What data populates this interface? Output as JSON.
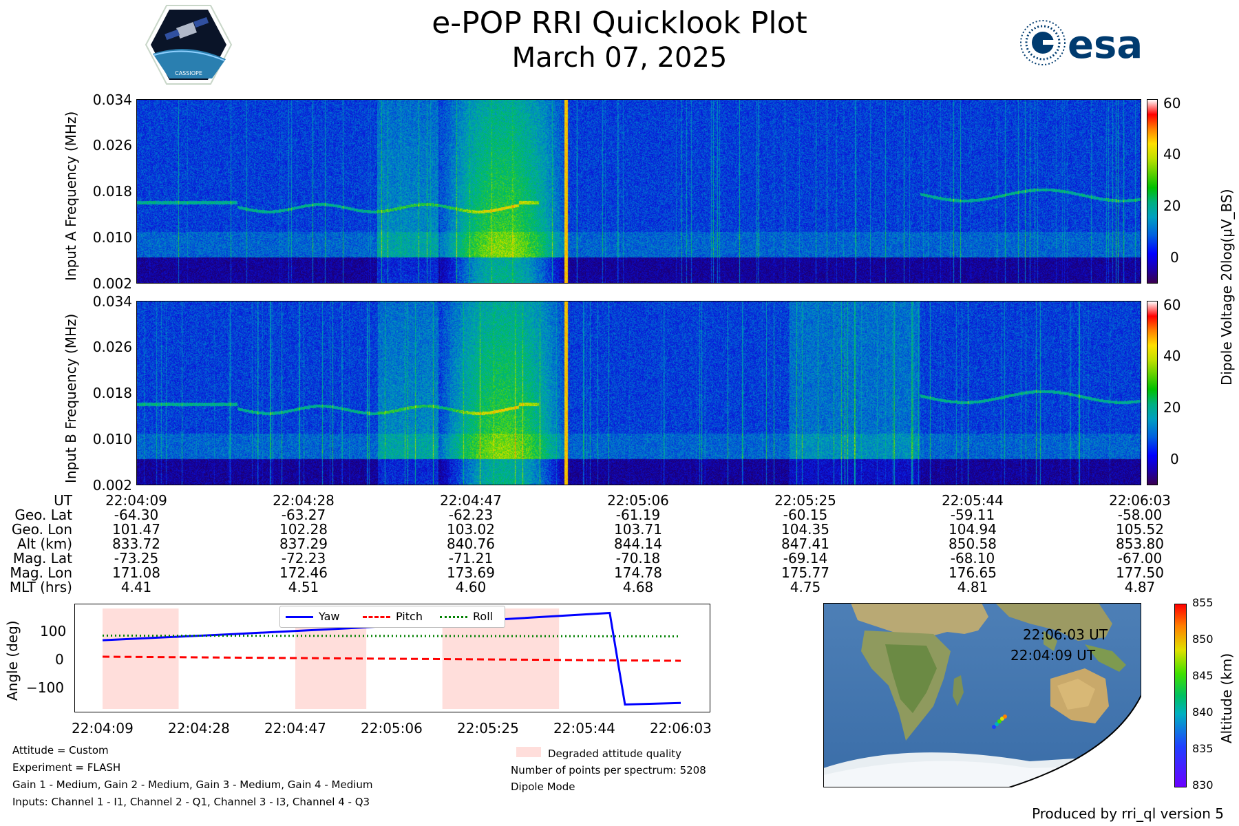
{
  "title": "e-POP RRI Quicklook Plot",
  "subtitle": "March 07, 2025",
  "logos": {
    "left": "cassiope-mission-patch",
    "left_text": "CASSIOPE",
    "right": "esa-logo",
    "right_text": "esa"
  },
  "chart_data": [
    {
      "type": "heatmap",
      "panel": "Input A",
      "ylabel": "Input A Frequency (MHz)",
      "ylim": [
        0.002,
        0.034
      ],
      "yticks": [
        "0.034",
        "0.026",
        "0.018",
        "0.010",
        "0.002"
      ],
      "colorbar_label": "Dipole Voltage 20log(μV_BS)",
      "colorbar_ticks": [
        "60",
        "40",
        "20",
        "0"
      ],
      "clim": [
        -10,
        62
      ]
    },
    {
      "type": "heatmap",
      "panel": "Input B",
      "ylabel": "Input B Frequency (MHz)",
      "ylim": [
        0.002,
        0.034
      ],
      "yticks": [
        "0.034",
        "0.026",
        "0.018",
        "0.010",
        "0.002"
      ],
      "colorbar_label": "Dipole Voltage 20log(μV_BS)",
      "colorbar_ticks": [
        "60",
        "40",
        "20",
        "0"
      ],
      "clim": [
        -10,
        62
      ]
    },
    {
      "type": "table",
      "row_labels": [
        "UT",
        "Geo. Lat",
        "Geo. Lon",
        "Alt (km)",
        "Mag. Lat",
        "Mag. Lon",
        "MLT (hrs)"
      ],
      "rows": [
        [
          "22:04:09",
          "22:04:28",
          "22:04:47",
          "22:05:06",
          "22:05:25",
          "22:05:44",
          "22:06:03"
        ],
        [
          "-64.30",
          "-63.27",
          "-62.23",
          "-61.19",
          "-60.15",
          "-59.11",
          "-58.00"
        ],
        [
          "101.47",
          "102.28",
          "103.02",
          "103.71",
          "104.35",
          "104.94",
          "105.52"
        ],
        [
          "833.72",
          "837.29",
          "840.76",
          "844.14",
          "847.41",
          "850.58",
          "853.80"
        ],
        [
          "-73.25",
          "-72.23",
          "-71.21",
          "-70.18",
          "-69.14",
          "-68.10",
          "-67.00"
        ],
        [
          "171.08",
          "172.46",
          "173.69",
          "174.78",
          "175.77",
          "176.65",
          "177.50"
        ],
        [
          "4.41",
          "4.51",
          "4.60",
          "4.68",
          "4.75",
          "4.81",
          "4.87"
        ]
      ]
    },
    {
      "type": "line",
      "ylabel": "Angle (deg)",
      "yticks": [
        "100",
        "0",
        "−100"
      ],
      "ylim": [
        -190,
        190
      ],
      "x_ticks": [
        "22:04:09",
        "22:04:28",
        "22:04:47",
        "22:05:06",
        "22:05:25",
        "22:05:44",
        "22:06:03"
      ],
      "x_seconds": [
        0,
        19,
        38,
        57,
        76,
        95,
        114
      ],
      "series": [
        {
          "name": "Yaw",
          "color": "#0000ff",
          "style": "solid",
          "x": [
            0,
            25,
            50,
            100,
            103,
            114
          ],
          "y": [
            72,
            95,
            120,
            178,
            -178,
            -172
          ]
        },
        {
          "name": "Pitch",
          "color": "#ff0000",
          "style": "dashed",
          "x": [
            0,
            114
          ],
          "y": [
            8,
            -8
          ]
        },
        {
          "name": "Roll",
          "color": "#008000",
          "style": "dotted",
          "x": [
            0,
            114
          ],
          "y": [
            90,
            87
          ]
        }
      ],
      "degraded_spans": [
        [
          0,
          15
        ],
        [
          38,
          52
        ],
        [
          67,
          90
        ]
      ],
      "legend": "upper-center"
    },
    {
      "type": "scatter",
      "panel": "orbit-map",
      "points": [
        {
          "label": "22:06:03 UT",
          "alt": 853.8
        },
        {
          "label": "22:04:09 UT",
          "alt": 833.72
        }
      ],
      "colorbar_label": "Altitude (km)",
      "colorbar_ticks": [
        "855",
        "850",
        "845",
        "840",
        "835",
        "830"
      ],
      "clim": [
        830,
        855
      ]
    }
  ],
  "notes": {
    "attitude": "Attitude = Custom",
    "experiment": "Experiment = FLASH",
    "gains": "Gain 1 - Medium, Gain 2 - Medium, Gain 3 - Medium, Gain 4 - Medium",
    "inputs": "Inputs: Channel 1 - I1, Channel 2 - Q1, Channel 3 - I3, Channel 4 - Q3",
    "degraded": "Degraded attitude quality",
    "points": "Number of points per spectrum: 5208",
    "mode": "Dipole Mode"
  },
  "footer": "Produced by rri_ql version 5"
}
